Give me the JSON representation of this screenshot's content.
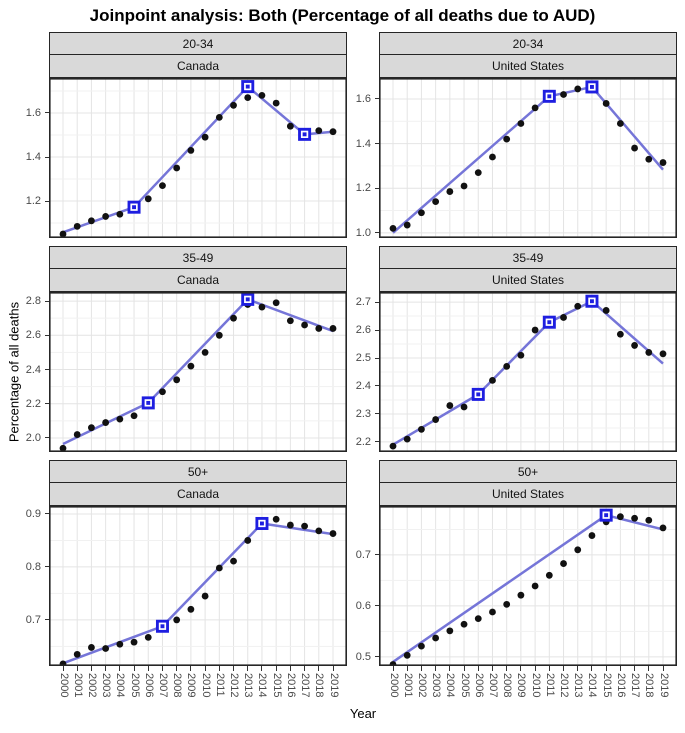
{
  "title": "Joinpoint analysis: Both (Percentage of all deaths due to AUD)",
  "chart_data": {
    "type": "line",
    "title": "Joinpoint analysis: Both (Percentage of all deaths due to AUD)",
    "xlabel": "Year",
    "ylabel": "Percentage of all deaths",
    "legend": "none",
    "grid": "on",
    "x": [
      2000,
      2001,
      2002,
      2003,
      2004,
      2005,
      2006,
      2007,
      2008,
      2009,
      2010,
      2011,
      2012,
      2013,
      2014,
      2015,
      2016,
      2017,
      2018,
      2019
    ],
    "facet_rows": [
      "20-34",
      "35-49",
      "50+"
    ],
    "facet_cols": [
      "Canada",
      "United States"
    ],
    "panels": [
      {
        "age": "20-34",
        "country": "Canada",
        "ylim": [
          1.032,
          1.759
        ],
        "yticks": [
          1.2,
          1.4,
          1.6
        ],
        "observed": [
          1.05,
          1.085,
          1.11,
          1.13,
          1.14,
          1.16,
          1.21,
          1.27,
          1.35,
          1.43,
          1.49,
          1.58,
          1.635,
          1.67,
          1.68,
          1.645,
          1.54,
          1.51,
          1.52,
          1.515
        ],
        "trend_vertices": [
          [
            2000,
            1.058
          ],
          [
            2005,
            1.172
          ],
          [
            2013,
            1.72
          ],
          [
            2017,
            1.503
          ],
          [
            2019,
            1.515
          ]
        ],
        "joinpoints": [
          [
            2005,
            1.172
          ],
          [
            2013,
            1.72
          ],
          [
            2017,
            1.503
          ]
        ]
      },
      {
        "age": "20-34",
        "country": "United States",
        "ylim": [
          0.977,
          1.694
        ],
        "yticks": [
          1.0,
          1.2,
          1.4,
          1.6
        ],
        "observed": [
          1.02,
          1.035,
          1.09,
          1.14,
          1.185,
          1.21,
          1.27,
          1.34,
          1.42,
          1.49,
          1.56,
          1.61,
          1.62,
          1.645,
          1.65,
          1.58,
          1.49,
          1.38,
          1.33,
          1.315
        ],
        "trend_vertices": [
          [
            2000,
            1.0
          ],
          [
            2011,
            1.612
          ],
          [
            2014,
            1.654
          ],
          [
            2019,
            1.283
          ]
        ],
        "joinpoints": [
          [
            2011,
            1.612
          ],
          [
            2014,
            1.654
          ]
        ]
      },
      {
        "age": "35-49",
        "country": "Canada",
        "ylim": [
          1.918,
          2.853
        ],
        "yticks": [
          2.0,
          2.2,
          2.4,
          2.6,
          2.8
        ],
        "observed": [
          1.94,
          2.02,
          2.06,
          2.09,
          2.11,
          2.13,
          2.205,
          2.27,
          2.34,
          2.42,
          2.5,
          2.6,
          2.7,
          2.78,
          2.765,
          2.79,
          2.685,
          2.66,
          2.64,
          2.64
        ],
        "trend_vertices": [
          [
            2000,
            1.965
          ],
          [
            2006,
            2.205
          ],
          [
            2013,
            2.81
          ],
          [
            2019,
            2.625
          ]
        ],
        "joinpoints": [
          [
            2006,
            2.205
          ],
          [
            2013,
            2.81
          ]
        ]
      },
      {
        "age": "35-49",
        "country": "United States",
        "ylim": [
          2.164,
          2.736
        ],
        "yticks": [
          2.2,
          2.3,
          2.4,
          2.5,
          2.6,
          2.7
        ],
        "observed": [
          2.185,
          2.21,
          2.245,
          2.28,
          2.33,
          2.325,
          2.37,
          2.42,
          2.47,
          2.51,
          2.6,
          2.63,
          2.645,
          2.685,
          2.7,
          2.67,
          2.585,
          2.545,
          2.52,
          2.515
        ],
        "trend_vertices": [
          [
            2000,
            2.19
          ],
          [
            2006,
            2.37
          ],
          [
            2011,
            2.628
          ],
          [
            2014,
            2.703
          ],
          [
            2019,
            2.48
          ]
        ],
        "joinpoints": [
          [
            2006,
            2.37
          ],
          [
            2011,
            2.628
          ],
          [
            2014,
            2.703
          ]
        ]
      },
      {
        "age": "50+",
        "country": "Canada",
        "ylim": [
          0.613,
          0.915
        ],
        "yticks": [
          0.7,
          0.8,
          0.9
        ],
        "observed": [
          0.617,
          0.635,
          0.648,
          0.646,
          0.654,
          0.658,
          0.667,
          0.686,
          0.7,
          0.72,
          0.745,
          0.798,
          0.811,
          0.85,
          0.878,
          0.89,
          0.879,
          0.877,
          0.868,
          0.863
        ],
        "trend_vertices": [
          [
            2000,
            0.618
          ],
          [
            2007,
            0.688
          ],
          [
            2014,
            0.882
          ],
          [
            2019,
            0.862
          ]
        ],
        "joinpoints": [
          [
            2007,
            0.688
          ],
          [
            2014,
            0.882
          ]
        ]
      },
      {
        "age": "50+",
        "country": "United States",
        "ylim": [
          0.482,
          0.796
        ],
        "yticks": [
          0.5,
          0.6,
          0.7
        ],
        "observed": [
          0.485,
          0.503,
          0.521,
          0.537,
          0.551,
          0.564,
          0.575,
          0.588,
          0.603,
          0.621,
          0.639,
          0.66,
          0.683,
          0.71,
          0.738,
          0.765,
          0.775,
          0.772,
          0.768,
          0.753
        ],
        "trend_vertices": [
          [
            2000,
            0.49
          ],
          [
            2015,
            0.778
          ],
          [
            2019,
            0.75
          ]
        ],
        "joinpoints": [
          [
            2015,
            0.778
          ]
        ]
      }
    ],
    "colors": {
      "trend_line": "#7575d8",
      "joinpoint_square": "#1e1ee0",
      "joinpoint_inner": "#ffffff",
      "observed_point": "#111111",
      "strip_bg": "#d9d9d9",
      "panel_border": "#262626",
      "grid_major": "#e4e4e4",
      "grid_minor": "#f1f1f1",
      "tick_label": "#4a4a4a"
    }
  }
}
